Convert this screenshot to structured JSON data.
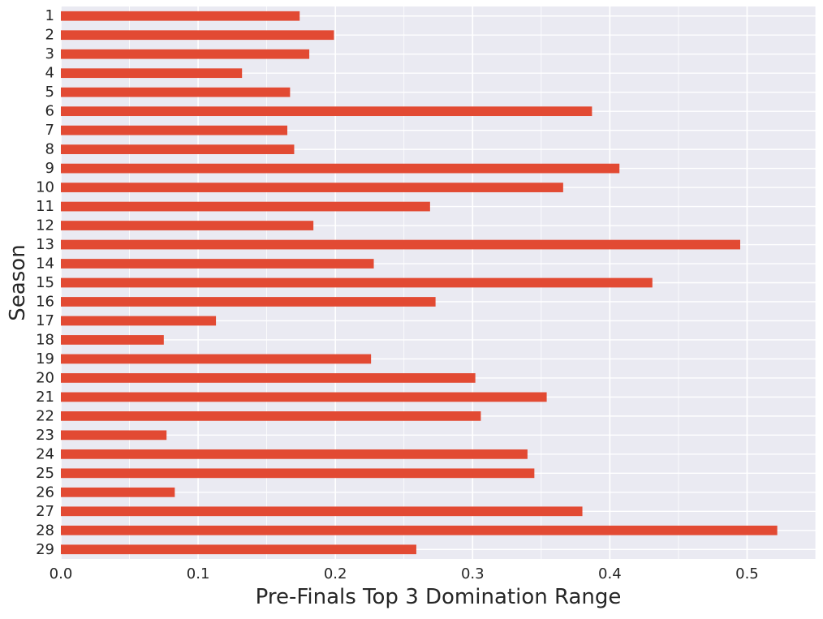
{
  "chart_data": {
    "type": "bar",
    "orientation": "horizontal",
    "title": "",
    "xlabel": "Pre-Finals Top 3 Domination Range",
    "ylabel": "Season",
    "xlim": [
      0.0,
      0.55
    ],
    "xticks": [
      "0.0",
      "0.1",
      "0.2",
      "0.3",
      "0.4",
      "0.5"
    ],
    "xtick_values": [
      0.0,
      0.1,
      0.2,
      0.3,
      0.4,
      0.5
    ],
    "grid": true,
    "legend": "none",
    "bar_color": "#E24A33",
    "background_color": "#EAEAF2",
    "grid_color": "#FFFFFF",
    "categories": [
      "1",
      "2",
      "3",
      "4",
      "5",
      "6",
      "7",
      "8",
      "9",
      "10",
      "11",
      "12",
      "13",
      "14",
      "15",
      "16",
      "17",
      "18",
      "19",
      "20",
      "21",
      "22",
      "23",
      "24",
      "25",
      "26",
      "27",
      "28",
      "29"
    ],
    "values": [
      0.174,
      0.199,
      0.181,
      0.132,
      0.167,
      0.387,
      0.165,
      0.17,
      0.407,
      0.366,
      0.269,
      0.184,
      0.495,
      0.228,
      0.431,
      0.273,
      0.113,
      0.075,
      0.226,
      0.302,
      0.354,
      0.306,
      0.077,
      0.34,
      0.345,
      0.083,
      0.38,
      0.522,
      0.259
    ]
  }
}
